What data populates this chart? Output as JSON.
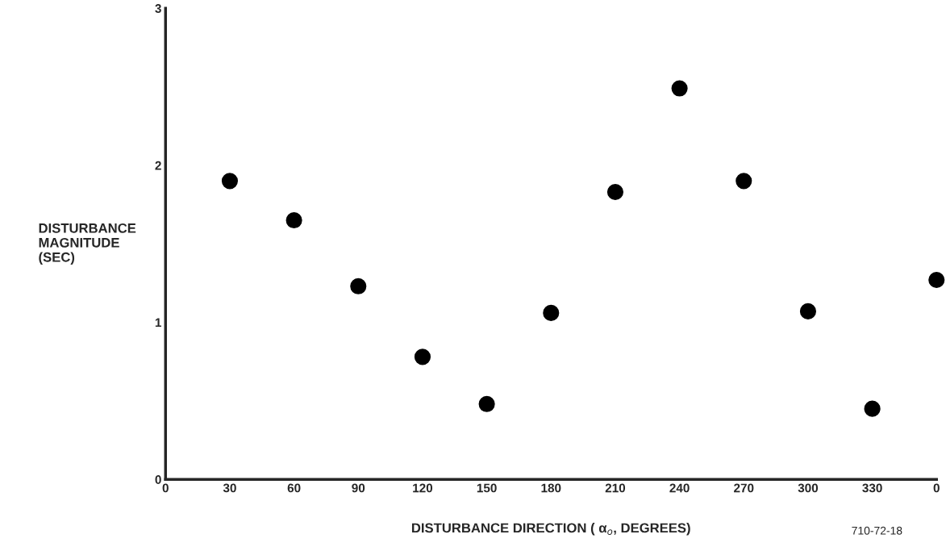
{
  "chart_data": {
    "type": "scatter",
    "xlabel": "DISTURBANCE DIRECTION ( α$_{o}$, DEGREES)",
    "ylabel": "DISTURBANCE\nMAGNITUDE\n(SEC)",
    "annotations": [
      "710-72-18"
    ],
    "categories": [
      "0",
      "30",
      "60",
      "90",
      "120",
      "150",
      "180",
      "210",
      "240",
      "270",
      "300",
      "330",
      "0"
    ],
    "values": [
      null,
      1.9,
      1.65,
      1.23,
      0.78,
      0.48,
      1.06,
      1.83,
      2.49,
      1.9,
      1.07,
      0.45,
      1.27
    ],
    "color": "#000000",
    "marker": "circle",
    "ylim": [
      0,
      3
    ],
    "yticks": [
      0,
      1,
      2,
      3
    ],
    "grid": false,
    "legend": false
  }
}
